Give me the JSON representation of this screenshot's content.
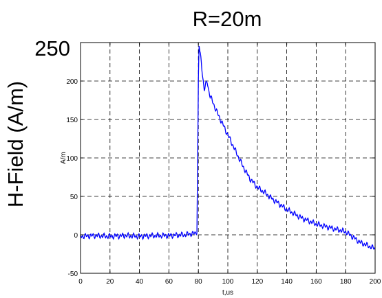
{
  "chart_data": {
    "type": "line",
    "title": "R=20m",
    "outer_ylabel": "H-Field (A/m)",
    "outer_ytop_label": "250",
    "xlabel": "t,us",
    "ylabel": "A/m",
    "xlim": [
      0,
      200
    ],
    "ylim": [
      -50,
      250
    ],
    "xticks": [
      0,
      20,
      40,
      60,
      80,
      100,
      120,
      140,
      160,
      180,
      200
    ],
    "yticks": [
      -50,
      0,
      50,
      100,
      150,
      200
    ],
    "grid": true,
    "grid_style": "dashed",
    "series": [
      {
        "color": "#0000ff",
        "x": [
          0,
          10,
          20,
          30,
          40,
          50,
          60,
          70,
          78,
          79,
          79.5,
          80,
          80.5,
          81,
          82,
          83,
          84,
          85,
          86,
          87,
          88,
          90,
          92,
          95,
          100,
          105,
          110,
          115,
          120,
          125,
          130,
          135,
          140,
          150,
          160,
          170,
          180,
          190,
          200
        ],
        "y": [
          -2,
          -1,
          -2,
          -1,
          -2,
          -1,
          -1,
          0,
          2,
          5,
          100,
          200,
          245,
          238,
          225,
          205,
          188,
          195,
          200,
          188,
          180,
          172,
          162,
          150,
          130,
          110,
          90,
          73,
          62,
          55,
          47,
          40,
          33,
          22,
          14,
          9,
          4,
          -10,
          -18
        ]
      }
    ]
  }
}
